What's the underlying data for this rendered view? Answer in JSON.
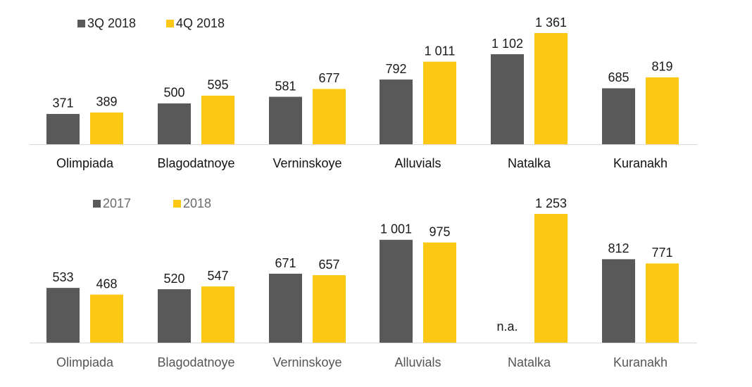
{
  "chart_data": [
    {
      "type": "bar",
      "categories": [
        "Olimpiada",
        "Blagodatnoye",
        "Verninskoye",
        "Alluvials",
        "Natalka",
        "Kuranakh"
      ],
      "series": [
        {
          "name": "3Q 2018",
          "color": "#595959",
          "values": [
            371,
            500,
            581,
            792,
            1102,
            685
          ],
          "labels": [
            "371",
            "500",
            "581",
            "792",
            "1 102",
            "685"
          ]
        },
        {
          "name": "4Q 2018",
          "color": "#FCC813",
          "values": [
            389,
            595,
            677,
            1011,
            1361,
            819
          ],
          "labels": [
            "389",
            "595",
            "677",
            "1 011",
            "1 361",
            "819"
          ]
        }
      ],
      "legend": "top-left",
      "grid": false,
      "ylim": [
        0,
        1361
      ]
    },
    {
      "type": "bar",
      "categories": [
        "Olimpiada",
        "Blagodatnoye",
        "Verninskoye",
        "Alluvials",
        "Natalka",
        "Kuranakh"
      ],
      "series": [
        {
          "name": "2017",
          "color": "#595959",
          "values": [
            533,
            520,
            671,
            1001,
            null,
            812
          ],
          "labels": [
            "533",
            "520",
            "671",
            "1 001",
            "n.a.",
            "812"
          ]
        },
        {
          "name": "2018",
          "color": "#FCC813",
          "values": [
            468,
            547,
            657,
            975,
            1253,
            771
          ],
          "labels": [
            "468",
            "547",
            "657",
            "975",
            "1 253",
            "771"
          ]
        }
      ],
      "legend": "top-left",
      "grid": false,
      "ylim": [
        0,
        1253
      ]
    }
  ]
}
